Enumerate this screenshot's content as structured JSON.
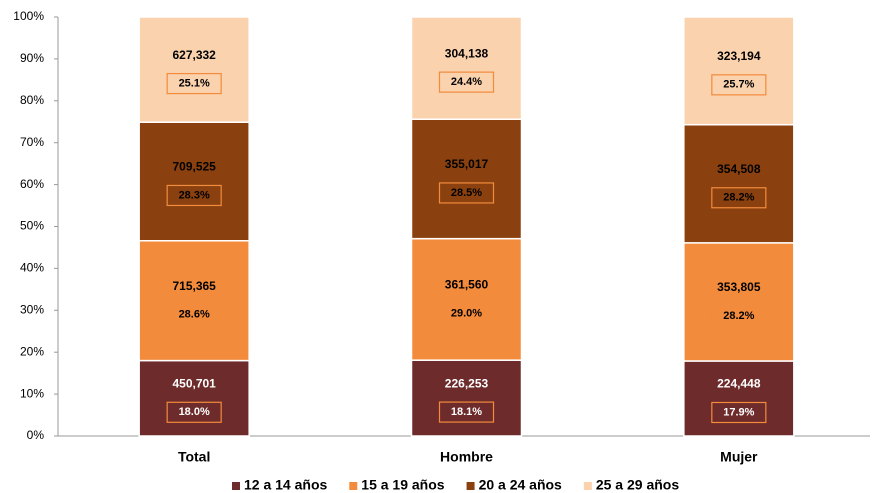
{
  "chart_data": {
    "type": "stacked_bar",
    "categories": [
      "Total",
      "Hombre",
      "Mujer"
    ],
    "ylim": [
      0,
      100
    ],
    "yticks": [
      {
        "value": 0,
        "label": "0%"
      },
      {
        "value": 10,
        "label": "10%"
      },
      {
        "value": 20,
        "label": "20%"
      },
      {
        "value": 30,
        "label": "30%"
      },
      {
        "value": 40,
        "label": "40%"
      },
      {
        "value": 50,
        "label": "50%"
      },
      {
        "value": 60,
        "label": "60%"
      },
      {
        "value": 70,
        "label": "70%"
      },
      {
        "value": 80,
        "label": "80%"
      },
      {
        "value": 90,
        "label": "90%"
      },
      {
        "value": 100,
        "label": "100%"
      }
    ],
    "grid": false,
    "legend": "bottom",
    "series": [
      {
        "name": "12 a 14 años",
        "color": "#6e2b2b",
        "values": [
          18.0,
          18.1,
          17.9
        ],
        "value_labels": [
          "18.0%",
          "18.1%",
          "17.9%"
        ],
        "counts": [
          450701,
          226253,
          224448
        ],
        "count_labels": [
          "450,701",
          "226,253",
          "224,448"
        ]
      },
      {
        "name": "15 a 19 años",
        "color": "#f28b3c",
        "values": [
          28.6,
          29.0,
          28.2
        ],
        "value_labels": [
          "28.6%",
          "29.0%",
          "28.2%"
        ],
        "counts": [
          715365,
          361560,
          353805
        ],
        "count_labels": [
          "715,365",
          "361,560",
          "353,805"
        ]
      },
      {
        "name": "20 a 24 años",
        "color": "#8a410f",
        "values": [
          28.3,
          28.5,
          28.2
        ],
        "value_labels": [
          "28.3%",
          "28.5%",
          "28.2%"
        ],
        "counts": [
          709525,
          355017,
          354508
        ],
        "count_labels": [
          "709,525",
          "355,017",
          "354,508"
        ]
      },
      {
        "name": "25 a 29 años",
        "color": "#fbd2ae",
        "values": [
          25.1,
          24.4,
          25.7
        ],
        "value_labels": [
          "25.1%",
          "24.4%",
          "25.7%"
        ],
        "counts": [
          627332,
          304138,
          323194
        ],
        "count_labels": [
          "627,332",
          "304,138",
          "323,194"
        ]
      }
    ]
  }
}
